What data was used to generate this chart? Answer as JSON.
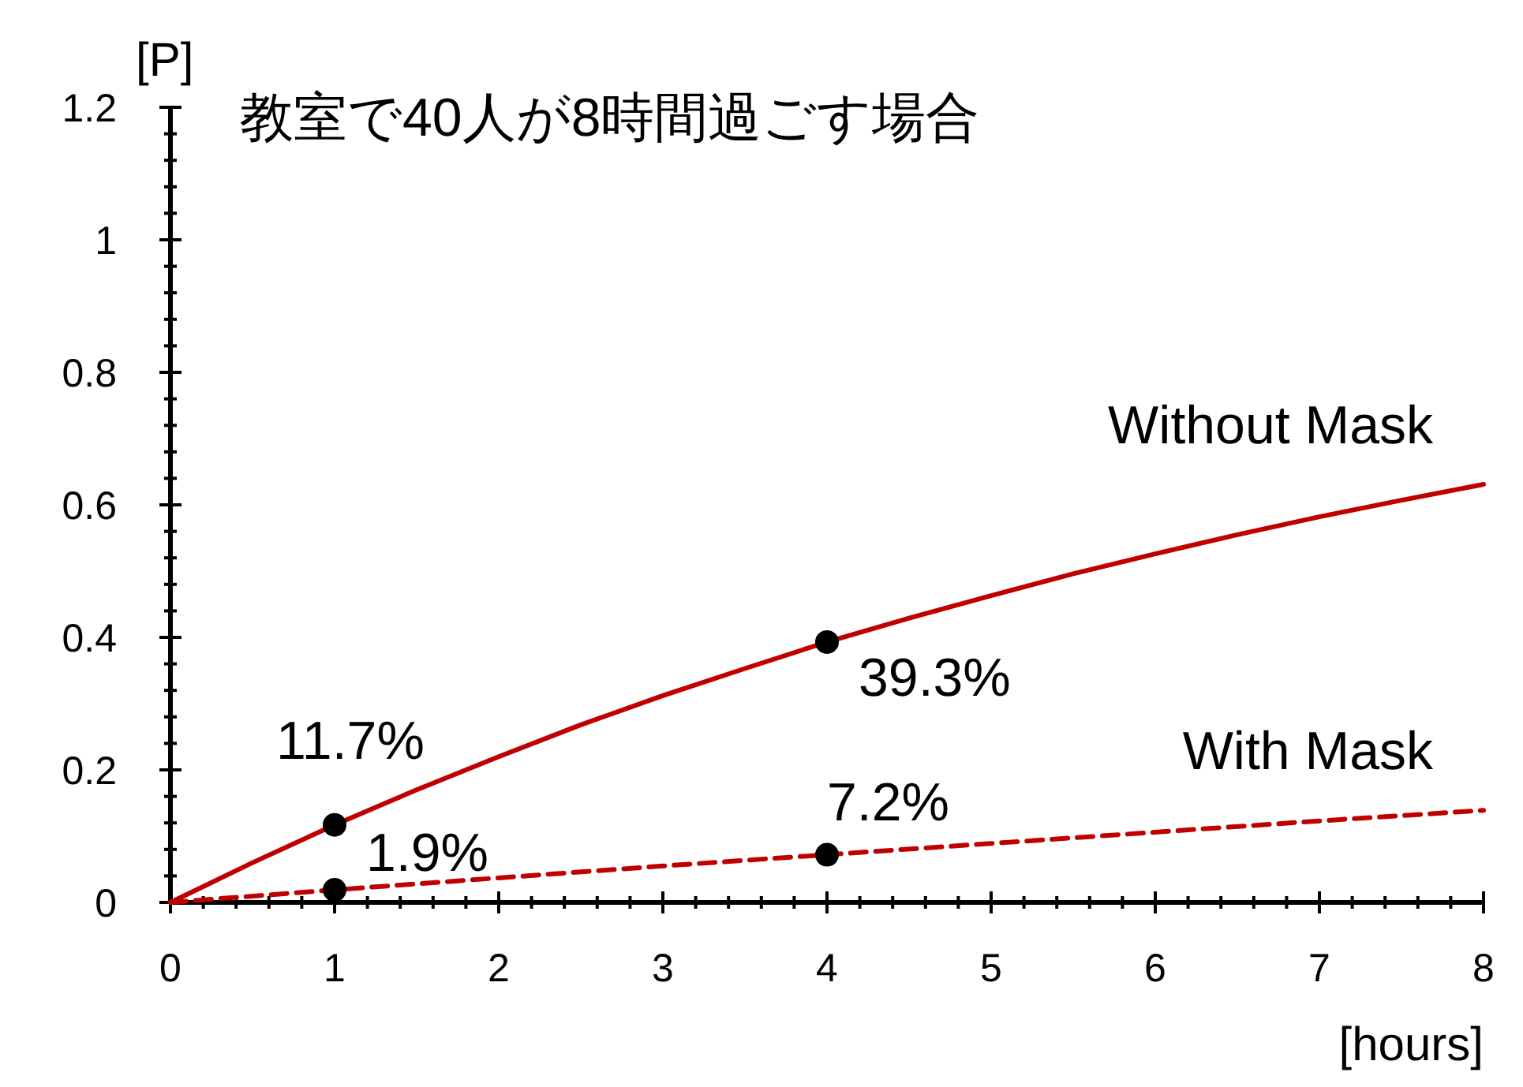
{
  "chart_data": {
    "type": "line",
    "title": "教室で40人が8時間過ごす場合",
    "xlabel": "[hours]",
    "ylabel": "[P]",
    "xlim": [
      0,
      8
    ],
    "xticks": [
      0,
      1,
      2,
      3,
      4,
      5,
      6,
      7,
      8
    ],
    "ylim": [
      0,
      1.2
    ],
    "yticks": [
      0,
      0.2,
      0.4,
      0.6,
      0.8,
      1,
      1.2
    ],
    "grid": false,
    "series": [
      {
        "name": "Without Mask",
        "color": "#c00000",
        "line_style": "solid",
        "x": [
          0,
          0.5,
          1,
          1.5,
          2,
          2.5,
          3,
          3.5,
          4,
          4.5,
          5,
          5.5,
          6,
          6.5,
          7,
          7.5,
          8
        ],
        "values": [
          0,
          0.06,
          0.117,
          0.17,
          0.22,
          0.268,
          0.312,
          0.353,
          0.393,
          0.429,
          0.463,
          0.496,
          0.526,
          0.555,
          0.582,
          0.607,
          0.631
        ]
      },
      {
        "name": "With Mask",
        "color": "#c00000",
        "line_style": "dashed",
        "x": [
          0,
          1,
          2,
          3,
          4,
          5,
          6,
          7,
          8
        ],
        "values": [
          0,
          0.019,
          0.037,
          0.055,
          0.072,
          0.089,
          0.106,
          0.123,
          0.139
        ]
      },
      {
        "type": "scatter",
        "color": "#000000",
        "marker": "circle",
        "x": [
          1,
          4
        ],
        "values": [
          0.117,
          0.393
        ],
        "value_labels": [
          "11.7%",
          "39.3%"
        ]
      },
      {
        "type": "scatter",
        "color": "#000000",
        "marker": "circle",
        "x": [
          1,
          4
        ],
        "values": [
          0.019,
          0.072
        ],
        "value_labels": [
          "1.9%",
          "7.2%"
        ]
      }
    ]
  }
}
